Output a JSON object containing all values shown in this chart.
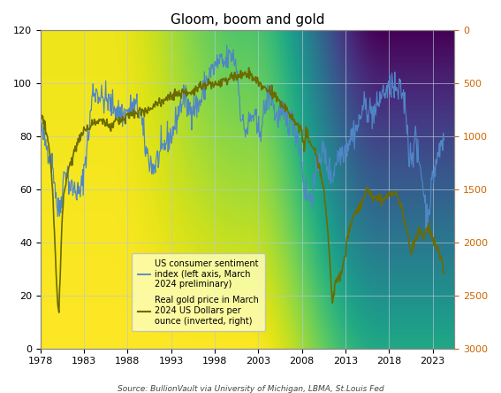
{
  "title": "Gloom, boom and gold",
  "source_text": "Source: BullionVault via University of Michigan, LBMA, St.Louis Fed",
  "left_ylim": [
    0,
    120
  ],
  "right_ylim": [
    3000,
    0
  ],
  "left_yticks": [
    0,
    20,
    40,
    60,
    80,
    100,
    120
  ],
  "right_yticks": [
    0,
    500,
    1000,
    1500,
    2000,
    2500,
    3000
  ],
  "xticks": [
    1978,
    1983,
    1988,
    1993,
    1998,
    2003,
    2008,
    2013,
    2018,
    2023
  ],
  "xlim": [
    1978,
    2025.5
  ],
  "bg_color_top": "#F5C842",
  "bg_color_bottom": "#FAFAB0",
  "sentiment_color": "#4F86C6",
  "gold_color": "#6B6B00",
  "right_tick_color": "#CC6600",
  "legend_box_color": "#FFFFC0",
  "legend_label_sentiment": "US consumer sentiment\nindex (left axis, March\n2024 preliminary)",
  "legend_label_gold": "Real gold price in March\n2024 US Dollars per\nounce (inverted, right)",
  "figsize": [
    5.67,
    4.44
  ],
  "dpi": 100
}
